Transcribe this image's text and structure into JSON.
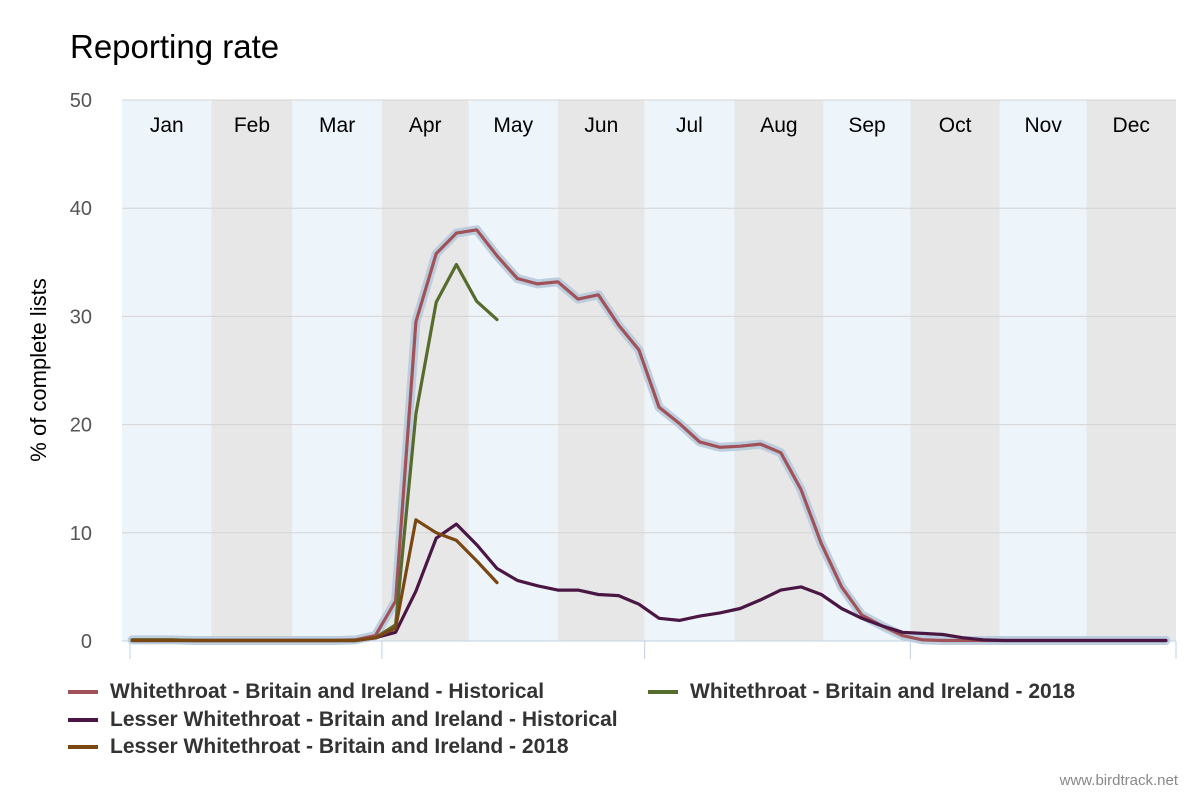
{
  "page": {
    "title": "Reporting rate",
    "credit": "www.birdtrack.net"
  },
  "chart_data": {
    "type": "line",
    "title": "Reporting rate",
    "ylabel": "% of complete lists",
    "xlabel": "",
    "ylim": [
      0,
      50
    ],
    "yticks": [
      0,
      10,
      20,
      30,
      40,
      50
    ],
    "xlim": [
      1,
      52
    ],
    "months": [
      "Jan",
      "Feb",
      "Mar",
      "Apr",
      "May",
      "Jun",
      "Jul",
      "Aug",
      "Sep",
      "Oct",
      "Nov",
      "Dec"
    ],
    "grid": true,
    "legend_position": "bottom",
    "band_colors": {
      "light": "#edf5fb",
      "dark": "#e7e7e7"
    },
    "series": [
      {
        "name": "Whitethroat - Britain and Ireland - Historical",
        "color": "#a05258",
        "band_color": "#b7cadb",
        "x": [
          1,
          2,
          3,
          4,
          5,
          6,
          7,
          8,
          9,
          10,
          11,
          12,
          13,
          14,
          15,
          16,
          17,
          18,
          19,
          20,
          21,
          22,
          23,
          24,
          25,
          26,
          27,
          28,
          29,
          30,
          31,
          32,
          33,
          34,
          35,
          36,
          37,
          38,
          39,
          40,
          41,
          42,
          43,
          44,
          45,
          46,
          47,
          48,
          49,
          50,
          51,
          52
        ],
        "y": [
          0.1,
          0.1,
          0.1,
          0.05,
          0.05,
          0.05,
          0.05,
          0.05,
          0.05,
          0.05,
          0.05,
          0.1,
          0.5,
          3.7,
          29.5,
          35.8,
          37.7,
          38.0,
          35.6,
          33.5,
          33.0,
          33.2,
          31.6,
          32.0,
          29.2,
          26.9,
          21.6,
          20.1,
          18.4,
          17.9,
          18.0,
          18.2,
          17.4,
          14.0,
          9.0,
          5.0,
          2.4,
          1.4,
          0.5,
          0.1,
          0.05,
          0.05,
          0.05,
          0.05,
          0.05,
          0.05,
          0.05,
          0.05,
          0.05,
          0.05,
          0.05,
          0.05
        ]
      },
      {
        "name": "Whitethroat - Britain and Ireland - 2018",
        "color": "#566b2c",
        "x": [
          1,
          2,
          3,
          4,
          5,
          6,
          7,
          8,
          9,
          10,
          11,
          12,
          13,
          14,
          15,
          16,
          17,
          18,
          19
        ],
        "y": [
          0.1,
          0.1,
          0.1,
          0.05,
          0.05,
          0.05,
          0.05,
          0.05,
          0.05,
          0.05,
          0.05,
          0.05,
          0.3,
          1.5,
          21.0,
          31.3,
          34.8,
          31.4,
          29.7
        ]
      },
      {
        "name": "Lesser Whitethroat - Britain and Ireland - Historical",
        "color": "#4a1745",
        "x": [
          1,
          2,
          3,
          4,
          5,
          6,
          7,
          8,
          9,
          10,
          11,
          12,
          13,
          14,
          15,
          16,
          17,
          18,
          19,
          20,
          21,
          22,
          23,
          24,
          25,
          26,
          27,
          28,
          29,
          30,
          31,
          32,
          33,
          34,
          35,
          36,
          37,
          38,
          39,
          40,
          41,
          42,
          43,
          44,
          45,
          46,
          47,
          48,
          49,
          50,
          51,
          52
        ],
        "y": [
          0.05,
          0.05,
          0.05,
          0.05,
          0.05,
          0.05,
          0.05,
          0.05,
          0.05,
          0.05,
          0.05,
          0.05,
          0.3,
          0.8,
          4.6,
          9.5,
          10.8,
          8.9,
          6.7,
          5.6,
          5.1,
          4.7,
          4.7,
          4.3,
          4.2,
          3.4,
          2.1,
          1.9,
          2.3,
          2.6,
          3.0,
          3.8,
          4.7,
          5.0,
          4.3,
          3.0,
          2.1,
          1.4,
          0.8,
          0.7,
          0.6,
          0.3,
          0.1,
          0.05,
          0.05,
          0.05,
          0.05,
          0.05,
          0.05,
          0.05,
          0.05,
          0.05
        ]
      },
      {
        "name": "Lesser Whitethroat - Britain and Ireland - 2018",
        "color": "#7a4612",
        "x": [
          1,
          2,
          3,
          4,
          5,
          6,
          7,
          8,
          9,
          10,
          11,
          12,
          13,
          14,
          15,
          16,
          17,
          18,
          19
        ],
        "y": [
          0.05,
          0.05,
          0.05,
          0.05,
          0.05,
          0.05,
          0.05,
          0.05,
          0.05,
          0.05,
          0.05,
          0.05,
          0.3,
          1.2,
          11.2,
          10.0,
          9.3,
          7.4,
          5.4
        ]
      }
    ]
  }
}
